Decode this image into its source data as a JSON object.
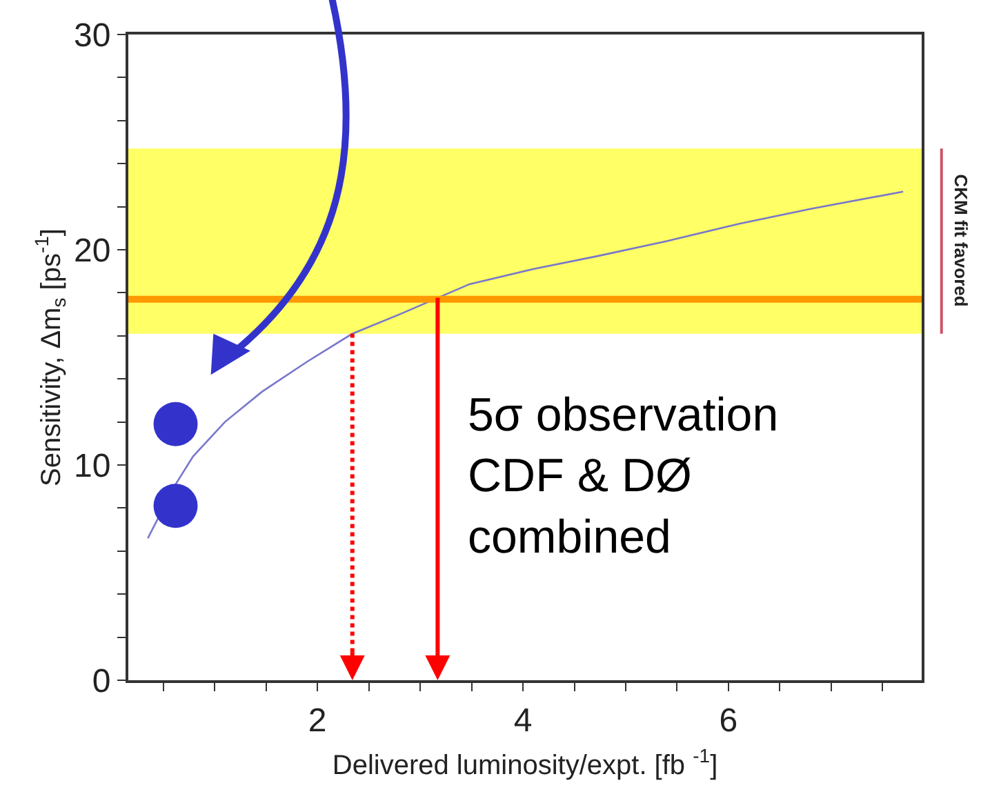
{
  "chart_data": {
    "type": "line",
    "xlabel": "Delivered luminosity/expt. [fb $^{-1}$]",
    "ylabel": "Sensitivity, Δm$_{s}$ [ps$^{-1}$]",
    "series": [
      {
        "color": "#7777cc",
        "x": [
          0.35,
          0.62,
          0.79,
          1.1,
          1.46,
          1.9,
          2.34,
          2.8,
          3.48,
          4.1,
          4.72,
          5.4,
          6.1,
          6.8,
          7.7
        ],
        "values": [
          6.6,
          9.1,
          10.4,
          12.0,
          13.4,
          14.8,
          16.1,
          17.0,
          18.4,
          19.1,
          19.7,
          20.4,
          21.2,
          21.9,
          22.7
        ]
      },
      {
        "type": "scatter",
        "color": "#3333cc",
        "marker": "circle",
        "x": [
          0.62,
          0.62
        ],
        "values": [
          11.9,
          8.1
        ]
      }
    ],
    "xlim": [
      0.16,
      7.88
    ],
    "ylim": [
      0,
      30
    ],
    "xticks": [
      {
        "value": 0.5,
        "label": null
      },
      {
        "value": 1,
        "label": null
      },
      {
        "value": 1.5,
        "label": null
      },
      2,
      {
        "value": 2.5,
        "label": null
      },
      {
        "value": 3,
        "label": null
      },
      {
        "value": 3.5,
        "label": null
      },
      4,
      {
        "value": 4.5,
        "label": null
      },
      {
        "value": 5,
        "label": null
      },
      {
        "value": 5.5,
        "label": null
      },
      6,
      {
        "value": 6.5,
        "label": null
      },
      {
        "value": 7,
        "label": null
      },
      {
        "value": 7.5,
        "label": null
      }
    ],
    "yticks": [
      0,
      {
        "value": 2,
        "label": null
      },
      {
        "value": 4,
        "label": null
      },
      {
        "value": 6,
        "label": null
      },
      {
        "value": 8,
        "label": null
      },
      10,
      {
        "value": 12,
        "label": null
      },
      {
        "value": 14,
        "label": null
      },
      {
        "value": 16,
        "label": null
      },
      {
        "value": 18,
        "label": null
      },
      20,
      {
        "value": 22,
        "label": null
      },
      {
        "value": 24,
        "label": null
      },
      {
        "value": 26,
        "label": null
      },
      {
        "value": 28,
        "label": null
      },
      30
    ],
    "bands": [
      {
        "axis": "y",
        "from": 16.1,
        "to": 24.7,
        "label": "CKM fit favored",
        "color": "#ffff66"
      }
    ],
    "ref_lines": [
      {
        "axis": "y",
        "value": 17.7,
        "color": "#ff9900",
        "line_style": "solid"
      },
      {
        "axis": "x",
        "value": 2.34,
        "color": "#ff0000",
        "line_style": "dotted"
      },
      {
        "axis": "x",
        "value": 3.17,
        "color": "#ff0000",
        "line_style": "solid"
      }
    ],
    "annotations": [
      "5σ observation\nCDF & DØ\ncombined"
    ],
    "grid": false,
    "legend": false
  }
}
